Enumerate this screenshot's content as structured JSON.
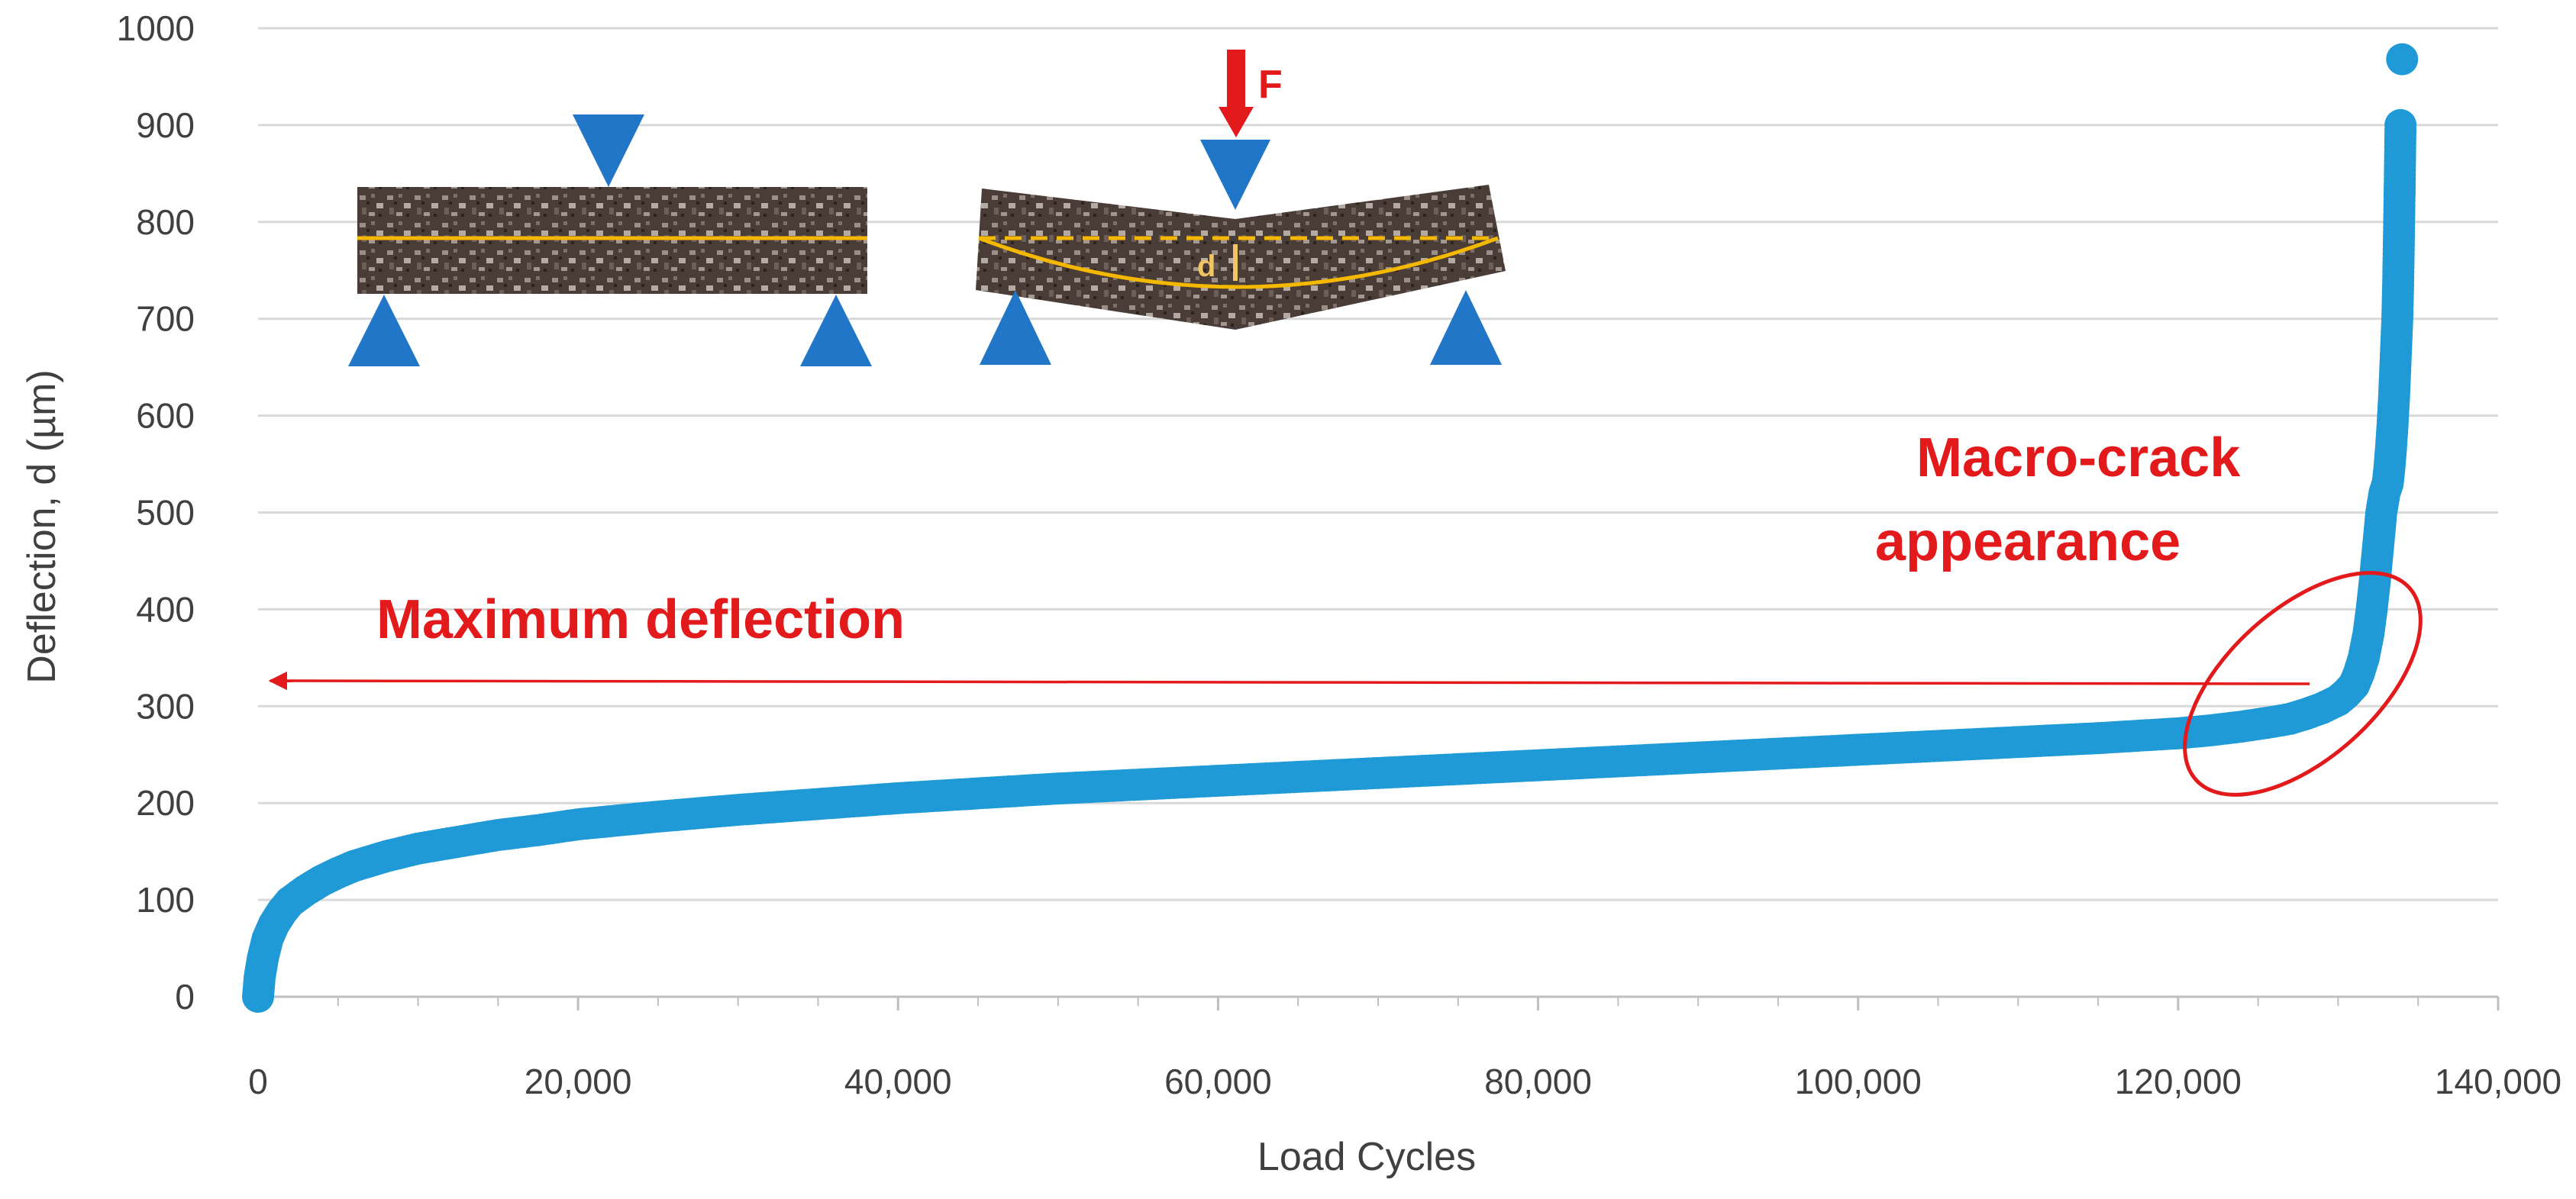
{
  "chart_data": {
    "type": "scatter",
    "title": "",
    "xlabel": "Load Cycles",
    "ylabel": "Deflection, d (µm)",
    "xlim": [
      0,
      140000
    ],
    "ylim": [
      0,
      1000
    ],
    "x_ticks": [
      "0",
      "20,000",
      "40,000",
      "60,000",
      "80,000",
      "100,000",
      "120,000",
      "140,000"
    ],
    "y_ticks": [
      "0",
      "100",
      "200",
      "300",
      "400",
      "500",
      "600",
      "700",
      "800",
      "900",
      "1000"
    ],
    "grid": "horizontal",
    "series_color": "#1f9ad6",
    "annotation_color": "#e31a1c",
    "series": [
      {
        "name": "Deflection",
        "x": [
          0,
          100,
          300,
          600,
          1000,
          1500,
          2000,
          3000,
          4000,
          5000,
          6000,
          8000,
          10000,
          12500,
          15000,
          17500,
          20000,
          25000,
          30000,
          35000,
          40000,
          45000,
          50000,
          55000,
          60000,
          65000,
          70000,
          75000,
          80000,
          85000,
          90000,
          95000,
          100000,
          105000,
          110000,
          115000,
          120000,
          122000,
          124000,
          126000,
          127000,
          128000,
          129000,
          130000,
          130500,
          131000,
          131300,
          131600,
          131900,
          132100,
          132300,
          132500,
          132700,
          132900,
          133100,
          133200,
          133300,
          133400,
          133500,
          133600,
          133700,
          133750,
          133800,
          133850,
          133900
        ],
        "y": [
          0,
          20,
          40,
          60,
          75,
          88,
          98,
          110,
          120,
          128,
          135,
          145,
          153,
          160,
          167,
          172,
          178,
          186,
          193,
          199,
          205,
          210,
          215,
          219,
          223,
          227,
          231,
          235,
          239,
          243,
          247,
          251,
          255,
          259,
          263,
          267,
          272,
          275,
          279,
          284,
          287,
          292,
          298,
          306,
          313,
          322,
          334,
          350,
          375,
          400,
          430,
          465,
          500,
          520,
          530,
          545,
          565,
          590,
          620,
          660,
          700,
          735,
          785,
          840,
          900
        ]
      },
      {
        "name": "Failure point",
        "x": [
          134000
        ],
        "y": [
          968
        ]
      }
    ],
    "annotations": {
      "max_deflection": "Maximum deflection",
      "macro_crack_1": "Macro-crack",
      "macro_crack_2": "appearance",
      "force": "F",
      "d_symbol": "d"
    }
  }
}
